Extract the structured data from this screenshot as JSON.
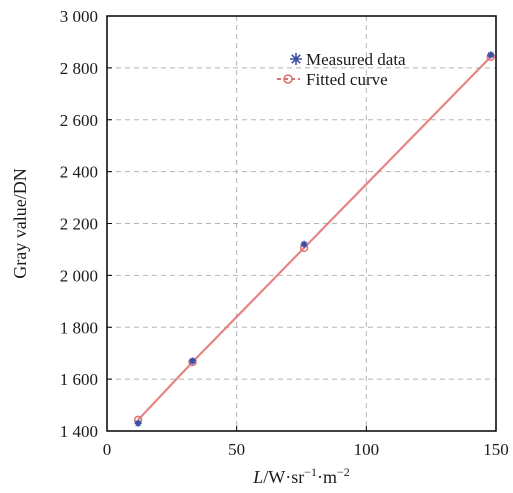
{
  "chart_data": {
    "type": "scatter",
    "xlabel_parts": {
      "var": "L",
      "unit_prefix": "/W·sr",
      "exp1": "−1",
      "mid": "·m",
      "exp2": "−2"
    },
    "ylabel": "Gray value/DN",
    "xlim": [
      0,
      150
    ],
    "ylim": [
      1400,
      3000
    ],
    "x_ticks": [
      0,
      50,
      100,
      150
    ],
    "x_tick_labels": [
      "0",
      "50",
      "100",
      "150"
    ],
    "y_ticks": [
      1400,
      1600,
      1800,
      2000,
      2200,
      2400,
      2600,
      2800,
      3000
    ],
    "y_tick_labels": [
      "1 400",
      "1 600",
      "1 800",
      "2 000",
      "2 200",
      "2 400",
      "2 600",
      "2 800",
      "3 000"
    ],
    "grid": true,
    "legend_position": "top-right",
    "series": [
      {
        "name": "Measured data",
        "kind": "scatter",
        "color": "#3a4fa0",
        "x": [
          12,
          33,
          76,
          148
        ],
        "y": [
          1430,
          1670,
          2120,
          2850
        ]
      },
      {
        "name": "Fitted curve",
        "kind": "line",
        "color": "#e07070",
        "x": [
          12,
          33,
          76,
          148
        ],
        "y": [
          1443,
          1666,
          2106,
          2843
        ]
      }
    ]
  }
}
